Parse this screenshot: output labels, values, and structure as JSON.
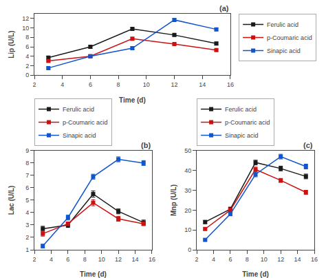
{
  "chart_data": [
    {
      "type": "line",
      "x": [
        3,
        6,
        9,
        12,
        15
      ],
      "xlabel": "Time (d)",
      "ylabel": "Lip (U/L)",
      "xlim": [
        2,
        16
      ],
      "xticks": [
        2,
        4,
        6,
        8,
        10,
        12,
        14,
        16
      ],
      "ylim": [
        0,
        13
      ],
      "yticks": [
        0,
        2,
        4,
        6,
        8,
        10,
        12
      ],
      "grid": false,
      "legend": "right",
      "marker": "square",
      "annotations": [
        "(a)"
      ],
      "series": [
        {
          "name": "Ferulic acid",
          "color": "#1a1a1a",
          "values": [
            3.7,
            6.0,
            9.8,
            8.5,
            6.7
          ],
          "errors": [
            0.3,
            0.3,
            0.3,
            0.25,
            0.3
          ]
        },
        {
          "name": "p-Coumaric acid",
          "color": "#cc1111",
          "values": [
            3.0,
            4.0,
            7.7,
            6.6,
            5.3
          ],
          "errors": [
            0.2,
            0.25,
            0.3,
            0.25,
            0.2
          ]
        },
        {
          "name": "Sinapic acid",
          "color": "#1155cc",
          "values": [
            1.5,
            4.0,
            5.7,
            11.7,
            9.7
          ],
          "errors": [
            0.2,
            0.25,
            0.25,
            0.3,
            0.3
          ]
        }
      ]
    },
    {
      "type": "line",
      "x": [
        3,
        6,
        9,
        12,
        15
      ],
      "xlabel": "Time (d)",
      "ylabel": "Lac (U/L)",
      "xlim": [
        2,
        16
      ],
      "xticks": [
        2,
        4,
        6,
        8,
        10,
        12,
        14,
        16
      ],
      "ylim": [
        1,
        9
      ],
      "yticks": [
        1,
        2,
        3,
        4,
        5,
        6,
        7,
        8,
        9
      ],
      "grid": false,
      "legend": "top",
      "marker": "square",
      "annotations": [
        "(b)"
      ],
      "series": [
        {
          "name": "Ferulic acid",
          "color": "#1a1a1a",
          "values": [
            2.7,
            3.0,
            5.5,
            4.1,
            3.2
          ],
          "errors": [
            0.2,
            0.2,
            0.25,
            0.2,
            0.2
          ]
        },
        {
          "name": "p-Coumaric acid",
          "color": "#cc1111",
          "values": [
            2.3,
            3.1,
            4.8,
            3.5,
            3.1
          ],
          "errors": [
            0.2,
            0.15,
            0.25,
            0.2,
            0.15
          ]
        },
        {
          "name": "Sinapic acid",
          "color": "#1155cc",
          "values": [
            1.3,
            3.6,
            6.9,
            8.3,
            8.0
          ],
          "errors": [
            0.15,
            0.2,
            0.2,
            0.2,
            0.2
          ]
        }
      ]
    },
    {
      "type": "line",
      "x": [
        3,
        6,
        9,
        12,
        15
      ],
      "xlabel": "Time (d)",
      "ylabel": "Mnp (U/L)",
      "xlim": [
        2,
        16
      ],
      "xticks": [
        2,
        4,
        6,
        8,
        10,
        12,
        14,
        16
      ],
      "ylim": [
        0,
        50
      ],
      "yticks": [
        0,
        10,
        20,
        30,
        40,
        50
      ],
      "grid": false,
      "legend": "top",
      "marker": "square",
      "annotations": [
        "(c)"
      ],
      "series": [
        {
          "name": "Ferulic acid",
          "color": "#1a1a1a",
          "values": [
            14.0,
            20.5,
            44.0,
            41.0,
            37.0
          ],
          "errors": [
            0.8,
            1.0,
            1.2,
            1.2,
            1.2
          ]
        },
        {
          "name": "p-Coumaric acid",
          "color": "#cc1111",
          "values": [
            10.5,
            20.0,
            40.5,
            35.0,
            29.0
          ],
          "errors": [
            0.6,
            1.0,
            1.2,
            1.0,
            1.0
          ]
        },
        {
          "name": "Sinapic acid",
          "color": "#1155cc",
          "values": [
            5.0,
            18.0,
            38.0,
            47.0,
            42.0
          ],
          "errors": [
            0.5,
            0.8,
            1.2,
            1.2,
            1.2
          ]
        }
      ]
    }
  ]
}
